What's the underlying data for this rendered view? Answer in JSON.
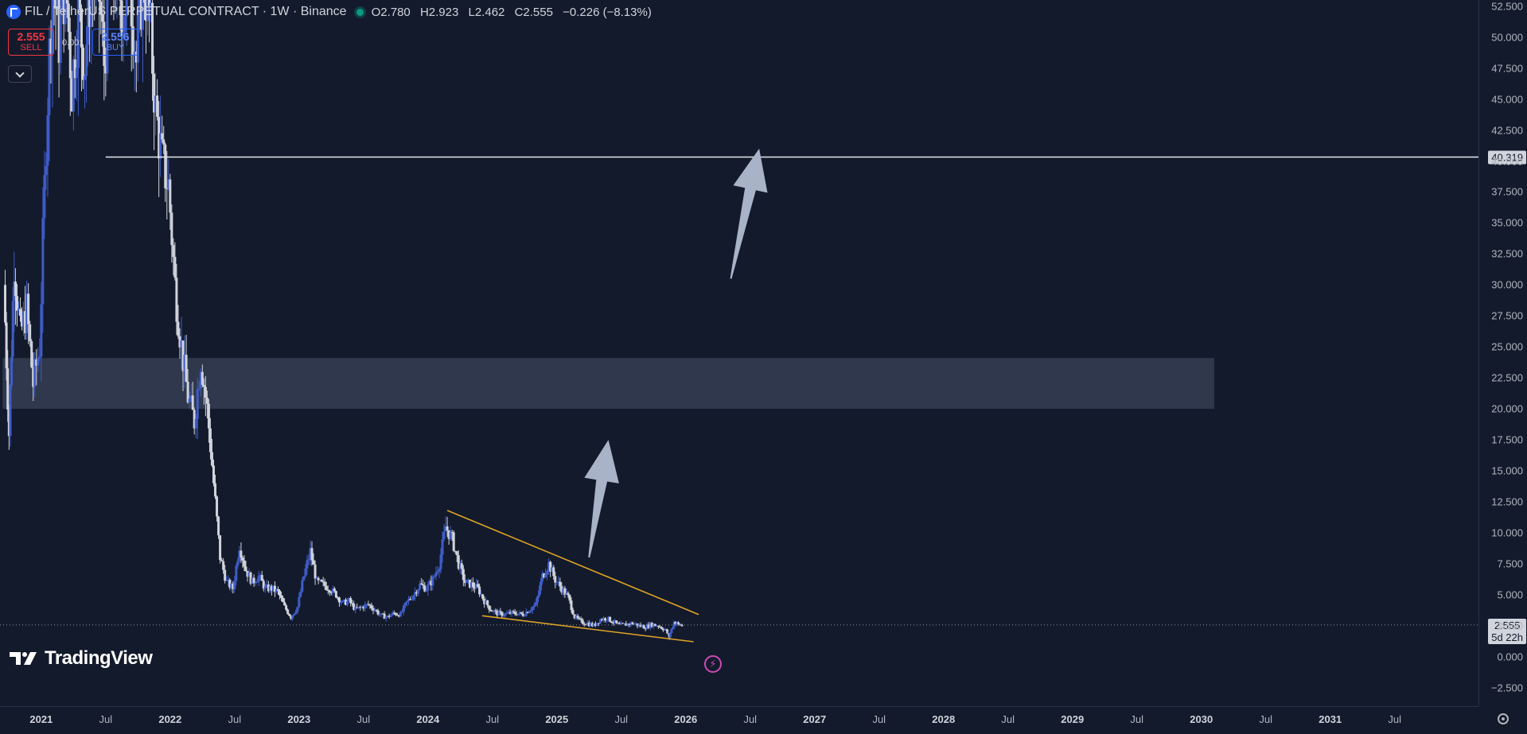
{
  "header": {
    "symbol": "FIL / TetherUS PERPETUAL CONTRACT · 1W · Binance",
    "ohlc": {
      "open": "O2.780",
      "high": "H2.923",
      "low": "L2.462",
      "close": "C2.555",
      "change": "−0.226 (−8.13%)"
    },
    "icon": "fil-symbol-icon"
  },
  "trade": {
    "sell_price": "2.555",
    "sell_label": "SELL",
    "buy_price": "2.556",
    "buy_label": "BUY",
    "spread": "0.001"
  },
  "branding": {
    "logo_text": "TradingView"
  },
  "price_tags": {
    "level_label": "40.319",
    "last_price": "2.555",
    "countdown": "5d 22h"
  },
  "colors": {
    "background": "#131a2b",
    "candle_up": "#3f5cc8",
    "candle_down": "#d1d4dc",
    "trendline": "#e0a526",
    "zone_fill": "#3a4358",
    "arrow_fill": "#a8b3c7",
    "sell": "#f23645",
    "buy": "#2962ff"
  },
  "chart_data": {
    "type": "candlestick",
    "title": "FIL / TetherUS PERPETUAL CONTRACT · 1W · Binance",
    "yticks": [
      "52.500",
      "50.000",
      "47.500",
      "45.000",
      "42.500",
      "40.000",
      "37.500",
      "35.000",
      "32.500",
      "30.000",
      "27.500",
      "25.000",
      "22.500",
      "20.000",
      "17.500",
      "15.000",
      "12.500",
      "10.000",
      "7.500",
      "5.000",
      "2.500",
      "0.000",
      "−2.500"
    ],
    "ylim": [
      -4.0,
      53.0
    ],
    "xticks": [
      {
        "label": "2021",
        "t": 2021.0,
        "year": true
      },
      {
        "label": "Jul",
        "t": 2021.5
      },
      {
        "label": "2022",
        "t": 2022.0,
        "year": true
      },
      {
        "label": "Jul",
        "t": 2022.5
      },
      {
        "label": "2023",
        "t": 2023.0,
        "year": true
      },
      {
        "label": "Jul",
        "t": 2023.5
      },
      {
        "label": "2024",
        "t": 2024.0,
        "year": true
      },
      {
        "label": "Jul",
        "t": 2024.5
      },
      {
        "label": "2025",
        "t": 2025.0,
        "year": true
      },
      {
        "label": "Jul",
        "t": 2025.5
      },
      {
        "label": "2026",
        "t": 2026.0,
        "year": true
      },
      {
        "label": "Jul",
        "t": 2026.5
      },
      {
        "label": "2027",
        "t": 2027.0,
        "year": true
      },
      {
        "label": "Jul",
        "t": 2027.5
      },
      {
        "label": "2028",
        "t": 2028.0,
        "year": true
      },
      {
        "label": "Jul",
        "t": 2028.5
      },
      {
        "label": "2029",
        "t": 2029.0,
        "year": true
      },
      {
        "label": "Jul",
        "t": 2029.5
      },
      {
        "label": "2030",
        "t": 2030.0,
        "year": true
      },
      {
        "label": "Jul",
        "t": 2030.5
      },
      {
        "label": "2031",
        "t": 2031.0,
        "year": true
      },
      {
        "label": "Jul",
        "t": 2031.5
      }
    ],
    "xlim": [
      2020.68,
      2032.15
    ],
    "last_price": 2.555,
    "horizontal_level": {
      "value": 40.319,
      "from": 2021.5
    },
    "zone": {
      "from": 2020.7,
      "to": 2030.1,
      "low": 20.0,
      "high": 24.1
    },
    "trendlines": [
      {
        "name": "upper",
        "points": [
          [
            2024.15,
            11.8
          ],
          [
            2026.1,
            3.4
          ]
        ]
      },
      {
        "name": "lower",
        "points": [
          [
            2024.42,
            3.3
          ],
          [
            2026.06,
            1.2
          ]
        ]
      }
    ],
    "arrows": [
      {
        "from": [
          2025.25,
          8.0
        ],
        "to": [
          2025.4,
          17.5
        ]
      },
      {
        "from": [
          2026.35,
          30.5
        ],
        "to": [
          2026.57,
          41.0
        ]
      }
    ],
    "price_path": [
      [
        2020.72,
        30
      ],
      [
        2020.76,
        18
      ],
      [
        2020.8,
        32
      ],
      [
        2020.85,
        26
      ],
      [
        2020.9,
        28
      ],
      [
        2020.95,
        22
      ],
      [
        2021.0,
        25
      ],
      [
        2021.05,
        42
      ],
      [
        2021.1,
        55
      ],
      [
        2021.15,
        50
      ],
      [
        2021.2,
        55
      ],
      [
        2021.25,
        46
      ],
      [
        2021.3,
        52
      ],
      [
        2021.35,
        48
      ],
      [
        2021.4,
        55
      ],
      [
        2021.45,
        55
      ],
      [
        2021.5,
        48
      ],
      [
        2021.55,
        55
      ],
      [
        2021.6,
        55
      ],
      [
        2021.65,
        52
      ],
      [
        2021.7,
        55
      ],
      [
        2021.75,
        48
      ],
      [
        2021.8,
        55
      ],
      [
        2021.85,
        52
      ],
      [
        2021.9,
        44
      ],
      [
        2021.95,
        40
      ],
      [
        2022.0,
        38
      ],
      [
        2022.05,
        30
      ],
      [
        2022.1,
        25
      ],
      [
        2022.15,
        21
      ],
      [
        2022.2,
        19
      ],
      [
        2022.25,
        24
      ],
      [
        2022.3,
        20
      ],
      [
        2022.35,
        14
      ],
      [
        2022.4,
        8
      ],
      [
        2022.45,
        6
      ],
      [
        2022.5,
        5.5
      ],
      [
        2022.55,
        9
      ],
      [
        2022.6,
        7
      ],
      [
        2022.65,
        6
      ],
      [
        2022.7,
        6.5
      ],
      [
        2022.75,
        5.5
      ],
      [
        2022.8,
        5.5
      ],
      [
        2022.85,
        5.2
      ],
      [
        2022.9,
        4.0
      ],
      [
        2022.95,
        3.2
      ],
      [
        2023.0,
        4.0
      ],
      [
        2023.05,
        6.5
      ],
      [
        2023.1,
        8.5
      ],
      [
        2023.15,
        6
      ],
      [
        2023.2,
        5.8
      ],
      [
        2023.25,
        5.5
      ],
      [
        2023.3,
        5.0
      ],
      [
        2023.35,
        4.3
      ],
      [
        2023.4,
        4.5
      ],
      [
        2023.45,
        3.8
      ],
      [
        2023.5,
        4.0
      ],
      [
        2023.55,
        4.2
      ],
      [
        2023.6,
        3.8
      ],
      [
        2023.65,
        3.3
      ],
      [
        2023.7,
        3.2
      ],
      [
        2023.75,
        3.5
      ],
      [
        2023.8,
        3.4
      ],
      [
        2023.85,
        4.4
      ],
      [
        2023.9,
        5.0
      ],
      [
        2023.95,
        5.8
      ],
      [
        2024.0,
        5.5
      ],
      [
        2024.05,
        6.2
      ],
      [
        2024.1,
        7.5
      ],
      [
        2024.15,
        10.5
      ],
      [
        2024.2,
        9.5
      ],
      [
        2024.25,
        7.5
      ],
      [
        2024.3,
        6.0
      ],
      [
        2024.35,
        5.8
      ],
      [
        2024.4,
        5.5
      ],
      [
        2024.45,
        4.5
      ],
      [
        2024.5,
        3.8
      ],
      [
        2024.55,
        3.5
      ],
      [
        2024.6,
        3.4
      ],
      [
        2024.65,
        3.5
      ],
      [
        2024.7,
        3.5
      ],
      [
        2024.75,
        3.4
      ],
      [
        2024.8,
        3.8
      ],
      [
        2024.85,
        4.2
      ],
      [
        2024.9,
        6.5
      ],
      [
        2024.95,
        7.5
      ],
      [
        2025.0,
        6.2
      ],
      [
        2025.05,
        5.5
      ],
      [
        2025.1,
        4.8
      ],
      [
        2025.15,
        3.2
      ],
      [
        2025.2,
        2.8
      ],
      [
        2025.25,
        2.7
      ],
      [
        2025.3,
        2.5
      ],
      [
        2025.35,
        3.0
      ],
      [
        2025.4,
        3.1
      ],
      [
        2025.45,
        2.8
      ],
      [
        2025.5,
        2.5
      ],
      [
        2025.55,
        2.6
      ],
      [
        2025.6,
        2.7
      ],
      [
        2025.65,
        2.5
      ],
      [
        2025.7,
        2.4
      ],
      [
        2025.75,
        2.6
      ],
      [
        2025.8,
        2.5
      ],
      [
        2025.85,
        2.2
      ],
      [
        2025.88,
        1.6
      ],
      [
        2025.92,
        2.8
      ],
      [
        2025.95,
        2.6
      ],
      [
        2025.98,
        2.555
      ]
    ]
  }
}
